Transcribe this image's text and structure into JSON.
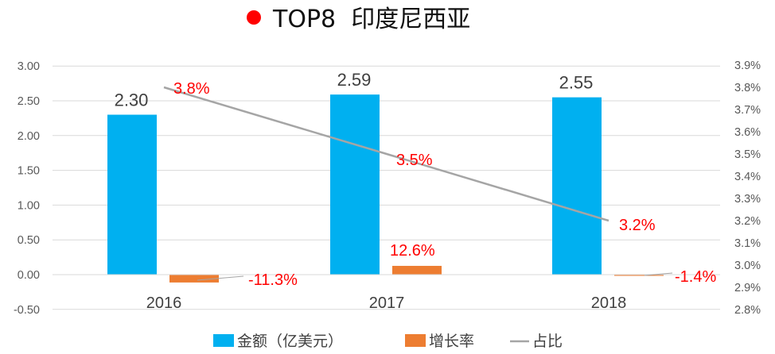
{
  "header": {
    "title": "TOP8  印度尼西亚",
    "marker_color": "#ff0000"
  },
  "chart_data": {
    "type": "bar",
    "title": "TOP8  印度尼西亚",
    "categories": [
      "2016",
      "2017",
      "2018"
    ],
    "series": [
      {
        "name": "金额（亿美元）",
        "type": "bar",
        "axis": "left",
        "color": "#00b0f0",
        "values": [
          2.3,
          2.59,
          2.55
        ],
        "labels": [
          "2.30",
          "2.59",
          "2.55"
        ]
      },
      {
        "name": "增长率",
        "type": "bar",
        "axis": "left",
        "color": "#ed7d31",
        "values": [
          -0.113,
          0.126,
          -0.014
        ],
        "labels": [
          "-11.3%",
          "12.6%",
          "-1.4%"
        ]
      },
      {
        "name": "占比",
        "type": "line",
        "axis": "right",
        "color": "#a5a5a5",
        "values": [
          3.8,
          3.5,
          3.2
        ],
        "labels": [
          "3.8%",
          "3.5%",
          "3.2%"
        ]
      }
    ],
    "left_axis": {
      "ticks": [
        "3.00",
        "2.50",
        "2.00",
        "1.50",
        "1.00",
        "0.50",
        "0.00",
        "-0.50"
      ],
      "ylim": [
        -0.5,
        3.0
      ]
    },
    "right_axis": {
      "ticks": [
        "3.9%",
        "3.8%",
        "3.7%",
        "3.6%",
        "3.5%",
        "3.4%",
        "3.3%",
        "3.2%",
        "3.1%",
        "3.0%",
        "2.9%",
        "2.8%"
      ],
      "ylim": [
        2.8,
        3.9
      ]
    },
    "legend_position": "bottom",
    "grid": true,
    "label_color": "#ff0000"
  }
}
